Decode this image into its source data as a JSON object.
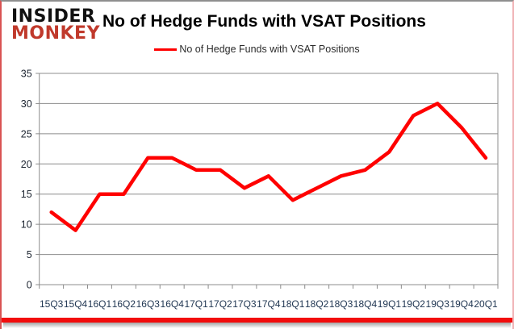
{
  "logo": {
    "line1": "INSIDER",
    "line2": "MONKEY"
  },
  "header": {
    "title": "No of Hedge Funds with VSAT Positions"
  },
  "legend": {
    "label": "No of Hedge Funds with VSAT Positions",
    "line_color": "#ff0000"
  },
  "chart_data": {
    "type": "line",
    "title": "No of Hedge Funds with VSAT Positions",
    "categories": [
      "15Q3",
      "15Q4",
      "16Q1",
      "16Q2",
      "16Q3",
      "16Q4",
      "17Q1",
      "17Q2",
      "17Q3",
      "17Q4",
      "18Q1",
      "18Q2",
      "18Q3",
      "18Q4",
      "19Q1",
      "19Q2",
      "19Q3",
      "19Q4",
      "20Q1"
    ],
    "series": [
      {
        "name": "No of Hedge Funds with VSAT Positions",
        "color": "#ff0000",
        "values": [
          12,
          9,
          15,
          15,
          21,
          21,
          19,
          19,
          16,
          18,
          14,
          16,
          18,
          19,
          22,
          28,
          30,
          26,
          21
        ]
      }
    ],
    "xlabel": "",
    "ylabel": "",
    "ylim": [
      0,
      35
    ],
    "yticks": [
      0,
      5,
      10,
      15,
      20,
      25,
      30,
      35
    ],
    "grid": true,
    "legend_position": "top",
    "gridline_color": "#8c8c8c",
    "axis_label_color": "#1e3450"
  }
}
